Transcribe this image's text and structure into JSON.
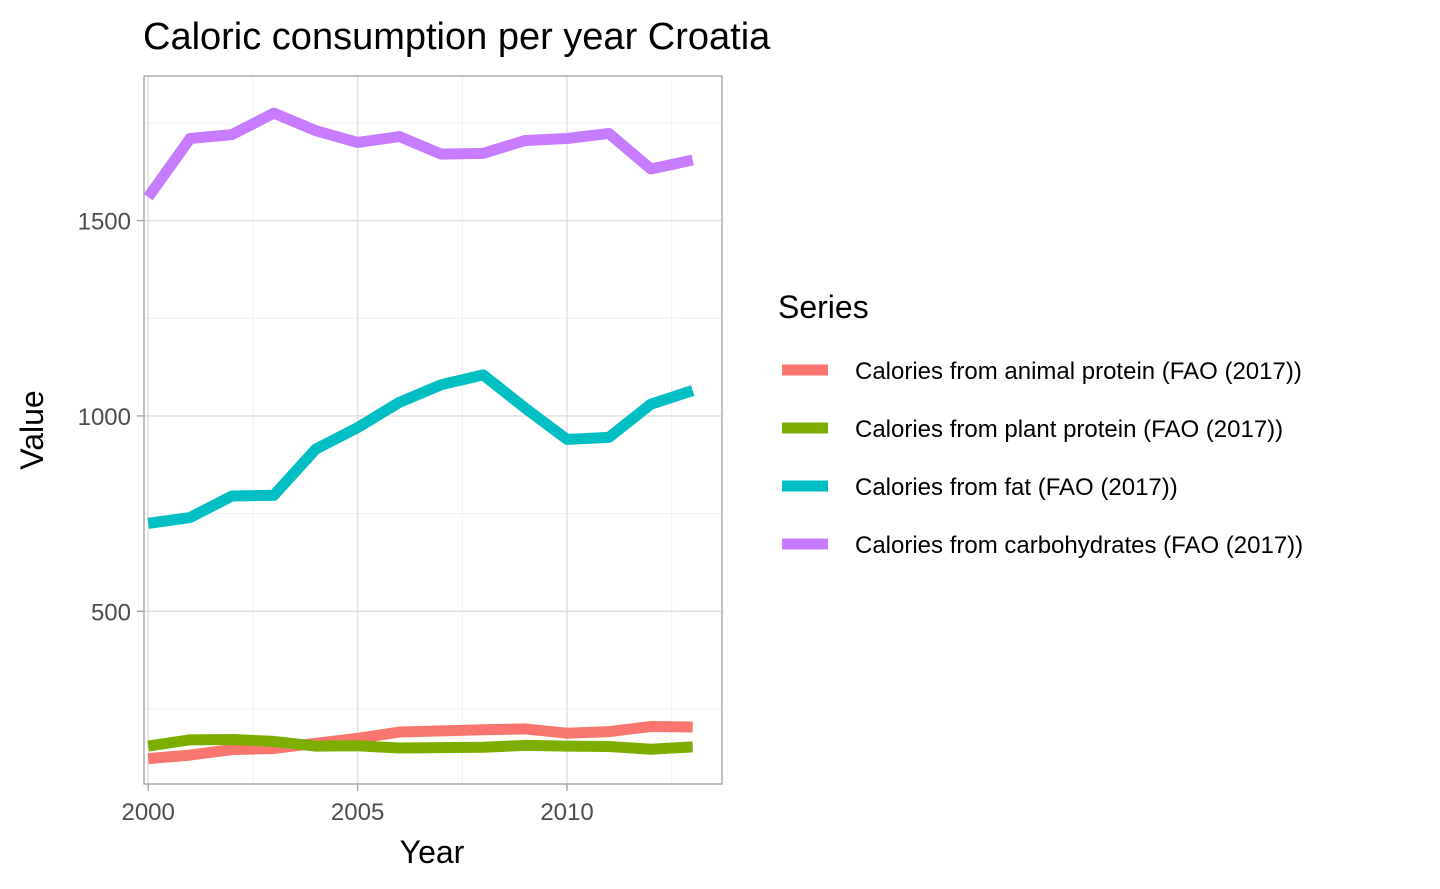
{
  "chart_data": {
    "type": "line",
    "title": "Caloric consumption per year Croatia",
    "xlabel": "Year",
    "ylabel": "Value",
    "x": [
      2000,
      2001,
      2002,
      2003,
      2004,
      2005,
      2006,
      2007,
      2008,
      2009,
      2010,
      2011,
      2012,
      2013
    ],
    "xlim": [
      1999.9,
      2013.7
    ],
    "ylim": [
      58,
      1870
    ],
    "xticks": [
      2000,
      2005,
      2010
    ],
    "xtick_labels": [
      "2000",
      "2005",
      "2010"
    ],
    "yticks": [
      500,
      1000,
      1500
    ],
    "ytick_labels": [
      "500",
      "1000",
      "1500"
    ],
    "grid": true,
    "legend_title": "Series",
    "legend_position": "right",
    "series": [
      {
        "name": "Calories from animal protein (FAO (2017))",
        "color": "#F8766D",
        "values": [
          123,
          132,
          146,
          149,
          162,
          175,
          191,
          194,
          197,
          199,
          188,
          192,
          205,
          204
        ]
      },
      {
        "name": "Calories from plant protein (FAO (2017))",
        "color": "#7CAE00",
        "values": [
          155,
          171,
          172,
          167,
          155,
          156,
          150,
          151,
          152,
          157,
          155,
          154,
          147,
          153
        ]
      },
      {
        "name": "Calories from fat (FAO (2017))",
        "color": "#00BFC4",
        "values": [
          725,
          740,
          795,
          797,
          915,
          970,
          1035,
          1080,
          1105,
          1020,
          940,
          945,
          1030,
          1065
        ]
      },
      {
        "name": "Calories from carbohydrates (FAO (2017))",
        "color": "#C77CFF",
        "values": [
          1560,
          1710,
          1720,
          1775,
          1730,
          1700,
          1715,
          1670,
          1672,
          1705,
          1710,
          1723,
          1632,
          1655
        ]
      }
    ]
  }
}
